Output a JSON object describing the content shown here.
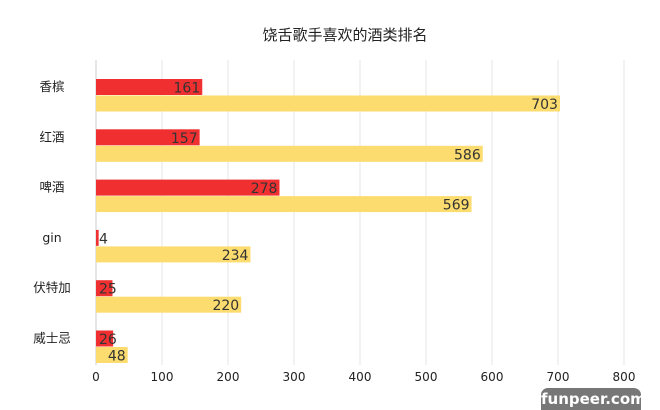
{
  "chart_data": {
    "type": "bar",
    "orientation": "horizontal",
    "title": "饶舌歌手喜欢的酒类排名",
    "categories": [
      "香槟",
      "红酒",
      "啤酒",
      "gin",
      "伏特加",
      "威士忌"
    ],
    "series": [
      {
        "values": [
          161,
          157,
          278,
          4,
          25,
          26
        ],
        "color": "#f03030"
      },
      {
        "values": [
          703,
          586,
          569,
          234,
          220,
          48
        ],
        "color": "#fcdc6e"
      }
    ],
    "xlim": [
      0,
      800
    ],
    "xticks": [
      0,
      100,
      200,
      300,
      400,
      500,
      600,
      700,
      800
    ],
    "grid": true,
    "data_labels": true
  },
  "watermark": "funpeer.com"
}
